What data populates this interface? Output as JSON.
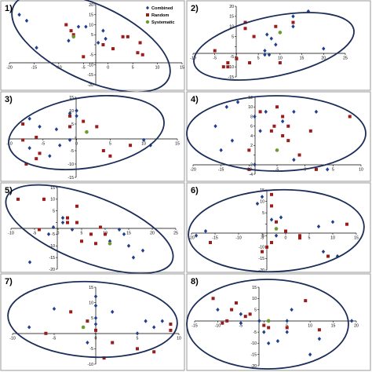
{
  "colors": {
    "combined": "#1f3f8f",
    "random": "#9b1c1c",
    "systematic": "#6c9a2e",
    "ellipse": "#1b2d58",
    "panel_border": "#9a9a9a"
  },
  "marker_shapes": {
    "combined": "diamond",
    "random": "square",
    "systematic": "circle"
  },
  "legend": {
    "entries": [
      "Combined",
      "Random",
      "Systematic"
    ],
    "location": "top-right of panel 1"
  },
  "chart_data": [
    {
      "type": "scatter",
      "panel_label": "1)",
      "xlim": [
        -20,
        15
      ],
      "ylim": [
        -20,
        20
      ],
      "xticks": [
        -20,
        -15,
        -10,
        -5,
        0,
        5,
        10,
        15
      ],
      "yticks": [
        -20,
        -15,
        -10,
        -5,
        0,
        5,
        10,
        15,
        20
      ],
      "grid": false,
      "series": [
        {
          "name": "Combined",
          "points": [
            [
              -18,
              15
            ],
            [
              -16.5,
              12
            ],
            [
              -14.5,
              -1.5
            ],
            [
              -6,
              9
            ],
            [
              -4.5,
              9
            ],
            [
              -1,
              7
            ],
            [
              -0.5,
              3
            ],
            [
              -8,
              2
            ],
            [
              -2,
              1
            ]
          ]
        },
        {
          "name": "Random",
          "points": [
            [
              -8.5,
              10
            ],
            [
              -7.5,
              7
            ],
            [
              -7,
              5
            ],
            [
              -5,
              -6
            ],
            [
              3,
              4
            ],
            [
              4,
              4
            ],
            [
              -1,
              0
            ],
            [
              1,
              -2
            ],
            [
              6.5,
              1
            ],
            [
              6,
              -4
            ],
            [
              7,
              -5
            ]
          ]
        },
        {
          "name": "Systematic",
          "points": [
            [
              -7,
              4
            ]
          ]
        }
      ]
    },
    {
      "type": "scatter",
      "panel_label": "2)",
      "xlim": [
        -10,
        25
      ],
      "ylim": [
        -15,
        20
      ],
      "xticks": [
        -10,
        -5,
        0,
        5,
        10,
        15,
        20,
        25
      ],
      "yticks": [
        -15,
        -10,
        -5,
        0,
        5,
        10,
        15,
        20
      ],
      "grid": false,
      "series": [
        {
          "name": "Combined",
          "points": [
            [
              16.5,
              17.5
            ],
            [
              13,
              15
            ],
            [
              13,
              10
            ],
            [
              7,
              6
            ],
            [
              8,
              4
            ],
            [
              9,
              1
            ],
            [
              6.5,
              -2
            ],
            [
              7.5,
              -4
            ],
            [
              6.5,
              -4
            ],
            [
              20,
              -1
            ]
          ]
        },
        {
          "name": "Random",
          "points": [
            [
              2,
              12
            ],
            [
              2,
              9
            ],
            [
              9,
              10
            ],
            [
              -5,
              -2
            ],
            [
              -3,
              -10
            ],
            [
              -2,
              -10
            ],
            [
              -2,
              -8
            ],
            [
              0,
              -6
            ],
            [
              3,
              -8
            ],
            [
              4,
              5
            ],
            [
              10,
              -8
            ],
            [
              13,
              12
            ]
          ]
        },
        {
          "name": "Systematic",
          "points": [
            [
              10,
              7
            ]
          ]
        }
      ]
    },
    {
      "type": "scatter",
      "panel_label": "3)",
      "xlim": [
        -10,
        15
      ],
      "ylim": [
        -15,
        15
      ],
      "xticks": [
        -10,
        -5,
        0,
        5,
        10,
        15
      ],
      "yticks": [
        -15,
        -10,
        -5,
        0,
        5,
        10,
        15
      ],
      "grid": false,
      "series": [
        {
          "name": "Combined",
          "points": [
            [
              -7,
              7
            ],
            [
              -5.5,
              4
            ],
            [
              -3,
              3
            ],
            [
              0,
              10
            ],
            [
              0,
              8
            ],
            [
              -1,
              9
            ],
            [
              -7,
              -4
            ],
            [
              -4,
              -7
            ],
            [
              -2.5,
              -3
            ],
            [
              -1,
              -1
            ],
            [
              10,
              -1
            ],
            [
              11,
              -3
            ]
          ]
        },
        {
          "name": "Random",
          "points": [
            [
              -8,
              5
            ],
            [
              -6,
              0
            ],
            [
              -8,
              -1
            ],
            [
              -6,
              -8
            ],
            [
              -7.5,
              -10
            ],
            [
              -1,
              8
            ],
            [
              1,
              6
            ],
            [
              3,
              4
            ],
            [
              -1,
              4
            ],
            [
              4,
              -5
            ],
            [
              5,
              -7
            ],
            [
              8,
              -3
            ],
            [
              -5.5,
              -6
            ]
          ]
        },
        {
          "name": "Systematic",
          "points": [
            [
              1.5,
              2
            ]
          ]
        }
      ]
    },
    {
      "type": "scatter",
      "panel_label": "4)",
      "xlim": [
        -20,
        10
      ],
      "ylim": [
        -4,
        12
      ],
      "xticks": [
        -20,
        -15,
        -10,
        -5,
        0,
        5,
        10
      ],
      "yticks": [
        -4,
        -2,
        0,
        2,
        4,
        6,
        8,
        10,
        12
      ],
      "grid": false,
      "series": [
        {
          "name": "Combined",
          "points": [
            [
              -14,
              10
            ],
            [
              -12,
              11
            ],
            [
              -9,
              8
            ],
            [
              -7,
              9
            ],
            [
              -4,
              7
            ],
            [
              -2,
              9
            ],
            [
              -16,
              6
            ],
            [
              -13,
              3
            ],
            [
              -15,
              1
            ],
            [
              -8,
              5
            ],
            [
              2,
              9
            ],
            [
              -2,
              -1
            ],
            [
              -9,
              -2
            ],
            [
              4,
              -3
            ]
          ]
        },
        {
          "name": "Random",
          "points": [
            [
              -8,
              9
            ],
            [
              -5,
              10
            ],
            [
              -4,
              8
            ],
            [
              -3,
              6
            ],
            [
              -6,
              5
            ],
            [
              -4,
              4
            ],
            [
              -5.5,
              6
            ],
            [
              -3,
              3
            ],
            [
              -10,
              1
            ],
            [
              1,
              5
            ],
            [
              -1,
              0
            ],
            [
              8,
              8
            ],
            [
              2,
              -3
            ],
            [
              -10,
              -3
            ]
          ]
        },
        {
          "name": "Systematic",
          "points": [
            [
              -5,
              1
            ]
          ]
        }
      ]
    },
    {
      "type": "scatter",
      "panel_label": "5)",
      "xlim": [
        -10,
        25
      ],
      "ylim": [
        -20,
        15
      ],
      "xticks": [
        -10,
        -5,
        0,
        5,
        10,
        15,
        20,
        25
      ],
      "yticks": [
        -20,
        -15,
        -10,
        -5,
        0,
        5,
        10,
        15
      ],
      "grid": false,
      "series": [
        {
          "name": "Combined",
          "points": [
            [
              -3,
              10
            ],
            [
              1,
              2
            ],
            [
              1,
              0
            ],
            [
              -1,
              -2
            ],
            [
              -2,
              -5
            ],
            [
              3,
              -3
            ],
            [
              13,
              -3
            ],
            [
              14,
              -5
            ],
            [
              11,
              -8
            ],
            [
              15,
              -10
            ],
            [
              16,
              -15
            ],
            [
              -6,
              -17
            ],
            [
              18,
              -12
            ]
          ]
        },
        {
          "name": "Random",
          "points": [
            [
              -8.5,
              10
            ],
            [
              -3,
              10
            ],
            [
              -4,
              -3
            ],
            [
              2,
              0
            ],
            [
              4,
              7
            ],
            [
              9,
              -2
            ],
            [
              10,
              -5
            ],
            [
              7,
              -5
            ],
            [
              5,
              -8
            ],
            [
              8,
              -9
            ],
            [
              4,
              0
            ],
            [
              2,
              2
            ]
          ]
        },
        {
          "name": "Systematic",
          "points": [
            [
              11,
              -9
            ]
          ]
        }
      ]
    },
    {
      "type": "scatter",
      "panel_label": "6)",
      "xlim": [
        -20,
        15
      ],
      "ylim": [
        -20,
        15
      ],
      "xticks": [
        -20,
        -15,
        -10,
        -5,
        0,
        5,
        10,
        15
      ],
      "yticks": [
        -20,
        -15,
        -10,
        -5,
        0,
        5,
        10,
        15
      ],
      "grid": false,
      "series": [
        {
          "name": "Combined",
          "points": [
            [
              -5,
              12
            ],
            [
              -6,
              9
            ],
            [
              -3,
              2
            ],
            [
              -1,
              3
            ],
            [
              -2,
              -5
            ],
            [
              -19,
              -5
            ],
            [
              -17,
              -3
            ],
            [
              7,
              -1
            ],
            [
              10,
              1
            ],
            [
              8,
              -12
            ],
            [
              11,
              -14
            ]
          ]
        },
        {
          "name": "Random",
          "points": [
            [
              -3,
              13
            ],
            [
              -3,
              8
            ],
            [
              -2,
              1
            ],
            [
              0,
              -3
            ],
            [
              -3,
              -8
            ],
            [
              -4,
              -10
            ],
            [
              -5,
              -12
            ],
            [
              -16,
              -8
            ],
            [
              3,
              -5
            ],
            [
              3,
              -6
            ],
            [
              13,
              0
            ],
            [
              9,
              -14
            ]
          ]
        },
        {
          "name": "Systematic",
          "points": [
            [
              -2,
              -2
            ]
          ]
        }
      ]
    },
    {
      "type": "scatter",
      "panel_label": "7)",
      "xlim": [
        -10,
        10
      ],
      "ylim": [
        -10,
        15
      ],
      "xticks": [
        -10,
        -5,
        0,
        5,
        10
      ],
      "yticks": [
        -10,
        -5,
        0,
        5,
        10,
        15
      ],
      "grid": false,
      "series": [
        {
          "name": "Combined",
          "points": [
            [
              -5,
              8
            ],
            [
              -8,
              2
            ],
            [
              0,
              12
            ],
            [
              0,
              9
            ],
            [
              0,
              5
            ],
            [
              0,
              3
            ],
            [
              2,
              7
            ],
            [
              6,
              4
            ],
            [
              8,
              4
            ],
            [
              7,
              2
            ],
            [
              5,
              0
            ],
            [
              -1,
              -3
            ]
          ]
        },
        {
          "name": "Random",
          "points": [
            [
              -3,
              7
            ],
            [
              -1,
              4
            ],
            [
              -6,
              0
            ],
            [
              2,
              -3
            ],
            [
              1,
              -8
            ],
            [
              5,
              -5
            ],
            [
              7,
              -6
            ],
            [
              9,
              3
            ],
            [
              9,
              1
            ],
            [
              0,
              1
            ]
          ]
        },
        {
          "name": "Systematic",
          "points": [
            [
              -1.5,
              2
            ]
          ]
        }
      ]
    },
    {
      "type": "scatter",
      "panel_label": "8)",
      "xlim": [
        -15,
        20
      ],
      "ylim": [
        -20,
        15
      ],
      "xticks": [
        -15,
        -10,
        -5,
        0,
        5,
        10,
        15,
        20
      ],
      "yticks": [
        -20,
        -15,
        -10,
        -5,
        0,
        5,
        10,
        15
      ],
      "grid": false,
      "series": [
        {
          "name": "Combined",
          "points": [
            [
              -10,
              5
            ],
            [
              -5,
              3
            ],
            [
              -1,
              0
            ],
            [
              0,
              -5
            ],
            [
              1,
              -10
            ],
            [
              3,
              -9
            ],
            [
              5,
              0
            ],
            [
              5,
              -5
            ],
            [
              6,
              5
            ],
            [
              10,
              -15
            ],
            [
              12,
              -8
            ],
            [
              19,
              0
            ],
            [
              -5,
              -1
            ]
          ]
        },
        {
          "name": "Random",
          "points": [
            [
              -11,
              10
            ],
            [
              -7,
              5
            ],
            [
              -6,
              8
            ],
            [
              -4,
              2
            ],
            [
              -3,
              3
            ],
            [
              0,
              -2
            ],
            [
              1,
              -3
            ],
            [
              -9,
              -1
            ],
            [
              -8,
              0
            ],
            [
              9,
              9
            ],
            [
              5,
              -3
            ],
            [
              12,
              -4
            ]
          ]
        },
        {
          "name": "Systematic",
          "points": [
            [
              1,
              0
            ]
          ]
        }
      ]
    }
  ]
}
